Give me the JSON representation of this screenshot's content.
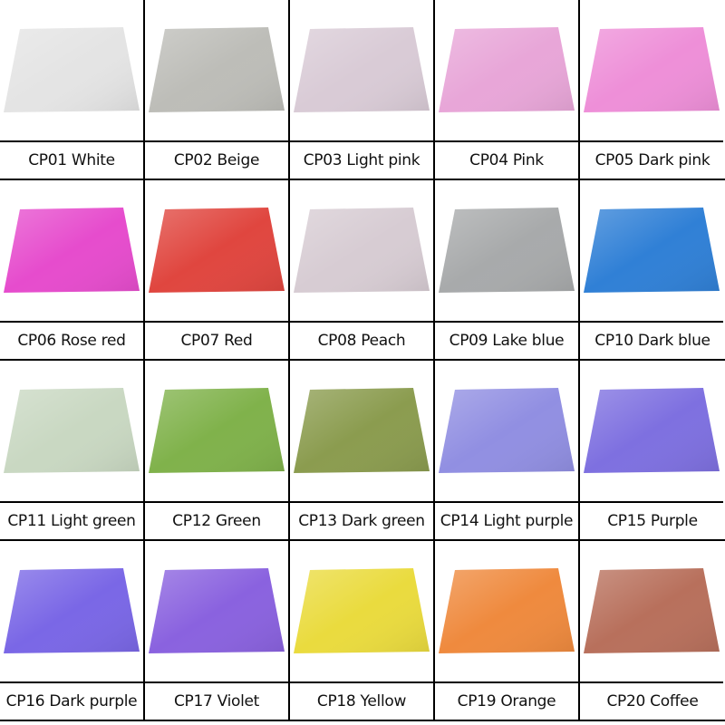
{
  "items": [
    {
      "label": "CP01 White"
    },
    {
      "label": "CP02 Beige"
    },
    {
      "label": "CP03 Light pink"
    },
    {
      "label": "CP04 Pink"
    },
    {
      "label": "CP05 Dark pink"
    },
    {
      "label": "CP06 Rose red"
    },
    {
      "label": "CP07 Red"
    },
    {
      "label": "CP08 Peach"
    },
    {
      "label": "CP09 Lake blue"
    },
    {
      "label": "CP10 Dark blue"
    },
    {
      "label": "CP11 Light green"
    },
    {
      "label": "CP12 Green"
    },
    {
      "label": "CP13 Dark green"
    },
    {
      "label": "CP14 Light purple"
    },
    {
      "label": "CP15 Purple"
    },
    {
      "label": "CP16 Dark purple"
    },
    {
      "label": "CP17 Violet"
    },
    {
      "label": "CP18 Yellow"
    },
    {
      "label": "CP19 Orange"
    },
    {
      "label": "CP20 Coffee"
    }
  ]
}
